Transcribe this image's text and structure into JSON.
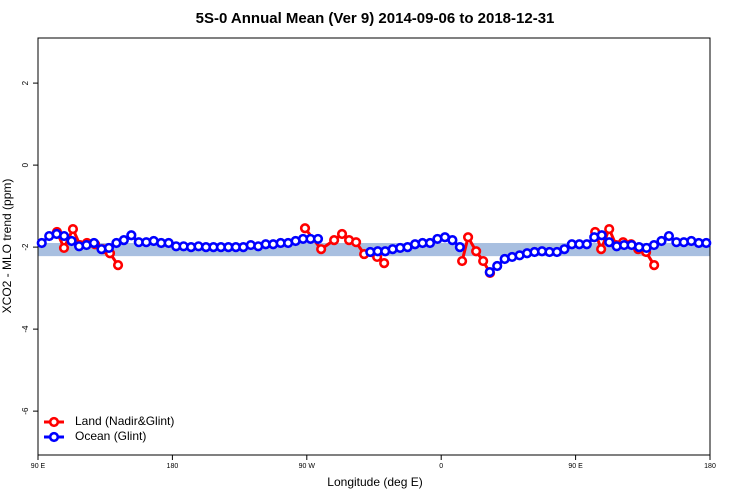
{
  "chart_data": {
    "type": "line",
    "title": "5S-0 Annual Mean (Ver 9)   2014-09-06 to 2018-12-31",
    "x_label": "Longitude (deg E)",
    "y_label": "XCO2 - MLO trend (ppm)",
    "xlim": [
      90,
      540
    ],
    "xticks": [
      {
        "value": 90,
        "label": "90 E"
      },
      {
        "value": 180,
        "label": "180"
      },
      {
        "value": 270,
        "label": "90 W"
      },
      {
        "value": 360,
        "label": "0"
      },
      {
        "value": 450,
        "label": "90 E"
      },
      {
        "value": 540,
        "label": "180"
      }
    ],
    "ylim": [
      -7.07,
      3.1
    ],
    "yticks": [
      2,
      0,
      -2,
      -4,
      -6
    ],
    "band": {
      "ymin": -2.22,
      "ymax": -1.9,
      "color": "#a8bfe0"
    },
    "legend": "bottom-left",
    "series": [
      {
        "name": "Land (Nadir&Glint)",
        "color": "#ff0000",
        "x": [
          102.7,
          107.4,
          113.4,
          118.1,
          122.8,
          128.2,
          133.5,
          138.2,
          143.6,
          200,
          268.8,
          279.6,
          288.3,
          293.6,
          298.3,
          303,
          308.4,
          317.1,
          321.8,
          350,
          374,
          378,
          383.4,
          388.1,
          392.7,
          430,
          463.1,
          467.1,
          472.5,
          477.1,
          481.8,
          487.2,
          491.9,
          497.2,
          502.6
        ],
        "values": [
          -1.63,
          -2.02,
          -1.56,
          -1.95,
          -1.9,
          -1.93,
          -2.05,
          -2.15,
          -2.44,
          null,
          -1.54,
          -2.05,
          -1.83,
          -1.68,
          -1.83,
          -1.88,
          -2.17,
          -2.24,
          -2.39,
          null,
          -2.34,
          -1.76,
          -2.1,
          -2.34,
          -2.63,
          null,
          -1.63,
          -2.05,
          -1.56,
          -1.95,
          -1.88,
          -1.93,
          -2.05,
          -2.12,
          -2.44
        ]
      },
      {
        "name": "Ocean (Glint)",
        "color": "#0000ff",
        "x": [
          92.5,
          97.5,
          102.5,
          107.5,
          112.5,
          117.5,
          122.5,
          127.5,
          132.5,
          137.5,
          142.5,
          147.5,
          152.5,
          157.5,
          162.5,
          167.5,
          172.5,
          177.5,
          182.5,
          187.5,
          192.5,
          197.5,
          202.5,
          207.5,
          212.5,
          217.5,
          222.5,
          227.5,
          232.5,
          237.5,
          242.5,
          247.5,
          252.5,
          257.5,
          262.5,
          267.5,
          272.5,
          277.5,
          282.5,
          287.5,
          292.5,
          297.5,
          302.5,
          307.5,
          312.5,
          317.5,
          322.5,
          327.5,
          332.5,
          337.5,
          342.5,
          347.5,
          352.5,
          357.5,
          362.5,
          367.5,
          372.5,
          377.5,
          382.5,
          387.5,
          392.5,
          397.5,
          402.5,
          407.5,
          412.5,
          417.5,
          422.5,
          427.5,
          432.5,
          437.5,
          442.5,
          447.5,
          452.5,
          457.5,
          462.5,
          467.5,
          472.5,
          477.5,
          482.5,
          487.5,
          492.5,
          497.5,
          502.5,
          507.5,
          512.5,
          517.5,
          522.5,
          527.5,
          532.5,
          537.5
        ],
        "values": [
          -1.9,
          -1.73,
          -1.68,
          -1.73,
          -1.85,
          -1.98,
          -1.95,
          -1.9,
          -2.05,
          -2.02,
          -1.9,
          -1.83,
          -1.71,
          -1.88,
          -1.88,
          -1.85,
          -1.9,
          -1.9,
          -1.98,
          -1.98,
          -2.0,
          -1.98,
          -2.0,
          -2.0,
          -2.0,
          -2.0,
          -2.0,
          -2.0,
          -1.95,
          -1.98,
          -1.93,
          -1.93,
          -1.9,
          -1.9,
          -1.85,
          -1.8,
          -1.8,
          -1.8,
          null,
          null,
          null,
          null,
          null,
          null,
          -2.12,
          -2.1,
          -2.1,
          -2.05,
          -2.02,
          -2.0,
          -1.93,
          -1.9,
          -1.9,
          -1.8,
          -1.76,
          -1.83,
          -2.0,
          null,
          null,
          null,
          -2.61,
          -2.46,
          -2.29,
          -2.24,
          -2.2,
          -2.15,
          -2.12,
          -2.1,
          -2.12,
          -2.12,
          -2.05,
          -1.93,
          -1.93,
          -1.93,
          -1.76,
          -1.71,
          -1.88,
          -1.98,
          -1.95,
          -1.95,
          -2.0,
          -2.02,
          -1.95,
          -1.85,
          -1.73,
          -1.88,
          -1.88,
          -1.85,
          -1.9,
          -1.9
        ]
      }
    ]
  }
}
